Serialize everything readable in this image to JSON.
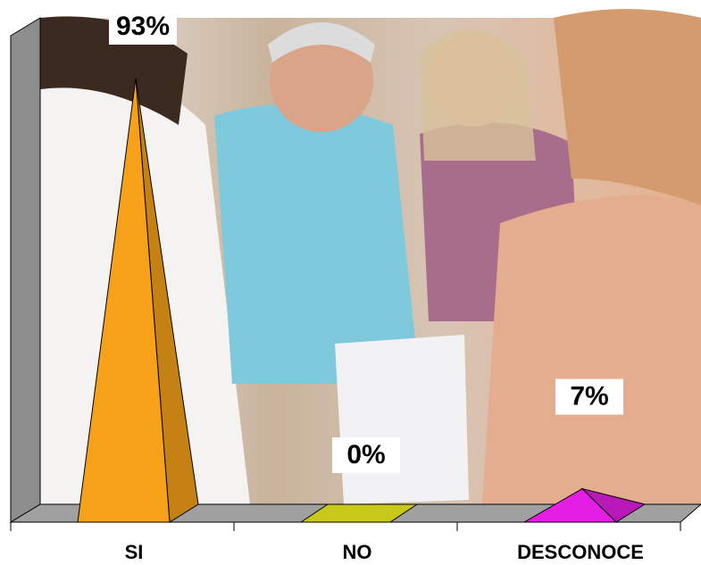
{
  "chart_data": {
    "type": "pyramid",
    "categories": [
      "SI",
      "NO",
      "DESCONOCE"
    ],
    "values": [
      93,
      0,
      7
    ],
    "value_labels": [
      "93%",
      "0%",
      "7%"
    ],
    "colors": [
      "#f7a11a",
      "#c8c81a",
      "#e51ee5"
    ]
  }
}
